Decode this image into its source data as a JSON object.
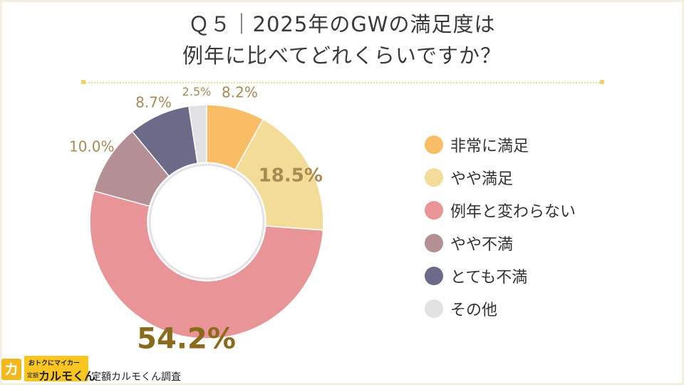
{
  "title_lines": [
    "Ｑ５｜2025年のGWの満足度は",
    "例年に比べてどれくらいですか？"
  ],
  "chart_data": {
    "type": "pie",
    "donut": true,
    "categories": [
      "非常に満足",
      "やや満足",
      "例年と変わらない",
      "やや不満",
      "とても不満",
      "その他"
    ],
    "values": [
      8.2,
      18.5,
      54.2,
      10.0,
      8.7,
      2.5
    ],
    "value_labels": [
      "8.2%",
      "18.5%",
      "54.2%",
      "10.0%",
      "8.7%",
      "2.5%"
    ],
    "colors": [
      "#f9bd66",
      "#f2dc97",
      "#e99598",
      "#b58f96",
      "#6b6b89",
      "#e2e1e4"
    ],
    "legend_position": "right"
  },
  "footer": {
    "logo_icon": "カ",
    "logo_tagline": "おトクにマイカー",
    "logo_sub": "定額",
    "logo_name": "カルモくん",
    "credit": "定額カルモくん調査"
  }
}
